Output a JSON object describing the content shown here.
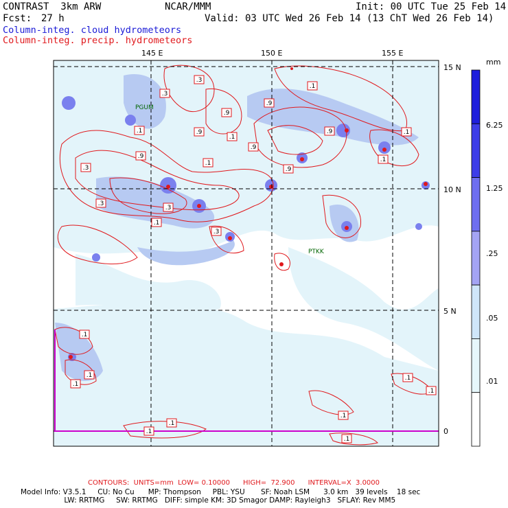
{
  "header": {
    "model": "CONTRAST  3km ARW",
    "org": "NCAR/MMM",
    "init": "Init: 00 UTC Tue 25 Feb 14",
    "fcst_label": "Fcst:",
    "fcst_value": "27 h",
    "valid": "Valid: 03 UTC Wed 26 Feb 14 (13 ChT Wed 26 Feb 14)",
    "field1": "Column-integ. cloud hydrometeors",
    "field2": "Column-integ. precip. hydrometeors"
  },
  "map": {
    "lon_ticks": [
      "145 E",
      "150 E",
      "155 E"
    ],
    "lat_ticks": [
      "15 N",
      "10 N",
      "5 N",
      "0"
    ],
    "stations": [
      "PGUM",
      "PTKK"
    ],
    "contour_labels": [
      ".3",
      ".3",
      ".9",
      ".9",
      ".9",
      ".1",
      ".9",
      ".9",
      ".9",
      ".1",
      ".3",
      ".1",
      ".9",
      ".1",
      ".3",
      ".3",
      ".1",
      ".3",
      ".1",
      ".1",
      ".1",
      ".1",
      ".1",
      ".1",
      ".1",
      ".1",
      ".1",
      ".1",
      ".1"
    ],
    "colors": {
      "grid": "#000000",
      "contour": "#e0181c",
      "cloud_light": "#ddf3fa",
      "cloud_mid": "#aac0f0",
      "cloud_dark": "#7a80ee"
    }
  },
  "colorbar": {
    "unit": "mm",
    "labels": [
      "6.25",
      "1.25",
      ".25",
      ".05",
      ".01"
    ],
    "colors": [
      "#1e1edc",
      "#3d3de8",
      "#6e6ef0",
      "#a4a4f4",
      "#cfe6fa",
      "#e6f7fb",
      "#ffffff"
    ]
  },
  "footer": {
    "contours": "CONTOURS:  UNITS=mm  LOW= 0.10000      HIGH=  72.900      INTERVAL=X  3.0000",
    "line1": "Model Info: V3.5.1     CU: No Cu      MP: Thompson     PBL: YSU       SF: Noah LSM      3.0 km   39 levels    18 sec",
    "line2": "                   LW: RRTMG     SW: RRTMG   DIFF: simple KM: 3D Smagor DAMP: Rayleigh3   SFLAY: Rev MM5"
  }
}
